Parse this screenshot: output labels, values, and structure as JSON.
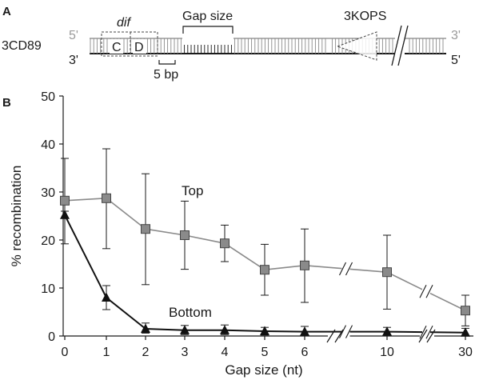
{
  "panel_a": {
    "panel_letter": "A",
    "substrate_name": "3CD89",
    "top_5prime": "5'",
    "top_3prime": "3'",
    "bottom_3prime": "3'",
    "bottom_5prime": "5'",
    "site_label": "dif",
    "site_C": "C",
    "site_D": "D",
    "gap_label": "Gap size",
    "scale_label": "5 bp",
    "kops_label": "3KOPS"
  },
  "panel_b": {
    "panel_letter": "B"
  },
  "chart_data": {
    "type": "line",
    "xlabel": "Gap size (nt)",
    "ylabel": "% recombination",
    "ylim": [
      0,
      50
    ],
    "yticks": [
      0,
      10,
      20,
      30,
      40,
      50
    ],
    "categories": [
      "0",
      "1",
      "2",
      "3",
      "4",
      "5",
      "6",
      "10",
      "30"
    ],
    "axis_breaks_after": [
      "6",
      "10"
    ],
    "grid": false,
    "series": [
      {
        "name": "Top",
        "color": "#8a8a8a",
        "marker": "square",
        "values": [
          28.2,
          28.7,
          22.3,
          21.0,
          19.3,
          13.8,
          14.7,
          13.3,
          5.3
        ],
        "err_low": [
          19.2,
          18.2,
          10.7,
          13.9,
          15.5,
          8.5,
          7.0,
          5.6,
          2.1
        ],
        "err_high": [
          37.0,
          39.0,
          33.8,
          28.1,
          23.1,
          19.1,
          22.3,
          21.0,
          8.5
        ]
      },
      {
        "name": "Bottom",
        "color": "#111111",
        "marker": "triangle",
        "values": [
          25.2,
          8.0,
          1.5,
          1.2,
          1.2,
          1.0,
          0.9,
          0.9,
          0.7
        ],
        "err_low": [
          24.5,
          5.5,
          0.6,
          0.3,
          0.3,
          0.2,
          0.1,
          0.1,
          0.0
        ],
        "err_high": [
          26.0,
          10.5,
          2.7,
          2.2,
          2.3,
          1.8,
          2.0,
          1.8,
          1.6
        ]
      }
    ]
  }
}
